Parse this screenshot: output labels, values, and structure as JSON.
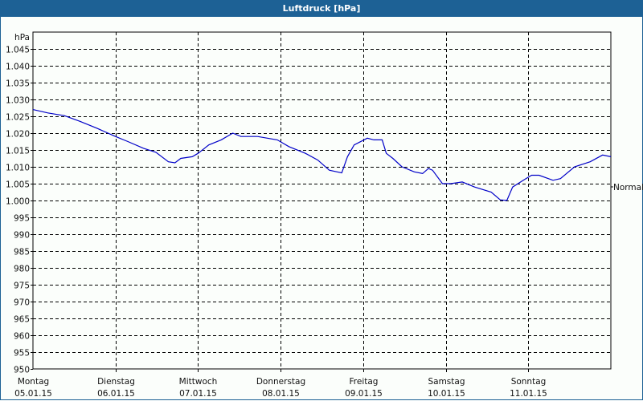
{
  "window": {
    "title": "Luftdruck [hPa]"
  },
  "colors": {
    "titlebar": "#1d6195",
    "line": "#0000c8",
    "grid": "#000000",
    "background": "#fbfefb"
  },
  "chart_data": {
    "type": "line",
    "title": "Luftdruck [hPa]",
    "ylabel": "hPa",
    "xlabel": "",
    "ylim": [
      950,
      1045
    ],
    "yticks": [
      "1.045",
      "1.040",
      "1.035",
      "1.030",
      "1.025",
      "1.020",
      "1.015",
      "1.010",
      "1.005",
      "1.000",
      "995",
      "990",
      "985",
      "980",
      "975",
      "970",
      "965",
      "960",
      "955",
      "950"
    ],
    "ytick_values": [
      1045,
      1040,
      1035,
      1030,
      1025,
      1020,
      1015,
      1010,
      1005,
      1000,
      995,
      990,
      985,
      980,
      975,
      970,
      965,
      960,
      955,
      950
    ],
    "categories": [
      {
        "day": "Montag",
        "date": "05.01.15"
      },
      {
        "day": "Dienstag",
        "date": "06.01.15"
      },
      {
        "day": "Mittwoch",
        "date": "07.01.15"
      },
      {
        "day": "Donnerstag",
        "date": "08.01.15"
      },
      {
        "day": "Freitag",
        "date": "09.01.15"
      },
      {
        "day": "Samstag",
        "date": "10.01.15"
      },
      {
        "day": "Sonntag",
        "date": "11.01.15"
      }
    ],
    "annotation": {
      "label": "Normal",
      "value": 1003
    },
    "grid": true,
    "series": [
      {
        "name": "Luftdruck",
        "x_days": [
          0,
          0.18,
          0.38,
          0.57,
          0.77,
          1.0,
          1.15,
          1.34,
          1.49,
          1.64,
          1.72,
          1.79,
          1.93,
          2.0,
          2.13,
          2.28,
          2.42,
          2.52,
          2.72,
          2.96,
          3.1,
          3.3,
          3.45,
          3.59,
          3.74,
          3.81,
          3.89,
          4.05,
          4.13,
          4.23,
          4.28,
          4.36,
          4.47,
          4.62,
          4.72,
          4.79,
          4.84,
          4.96,
          5.06,
          5.2,
          5.35,
          5.55,
          5.66,
          5.74,
          5.81,
          5.94,
          6.04,
          6.13,
          6.3,
          6.39,
          6.56,
          6.75,
          6.9,
          7.0
        ],
        "values": [
          1027.0,
          1026.0,
          1025.2,
          1023.5,
          1021.5,
          1019.0,
          1017.5,
          1015.5,
          1014.3,
          1011.5,
          1011.2,
          1012.5,
          1013.0,
          1014.0,
          1016.5,
          1018.0,
          1020.0,
          1019.0,
          1019.0,
          1018.0,
          1016.0,
          1014.0,
          1012.0,
          1009.0,
          1008.2,
          1013.0,
          1016.5,
          1018.5,
          1018.0,
          1018.0,
          1014.0,
          1012.5,
          1010.0,
          1008.5,
          1008.0,
          1009.5,
          1009.0,
          1005.0,
          1005.0,
          1005.5,
          1004.0,
          1002.5,
          1000.2,
          1000.0,
          1004.0,
          1006.0,
          1007.5,
          1007.5,
          1006.0,
          1006.5,
          1010.0,
          1011.5,
          1013.5,
          1013.0
        ]
      }
    ]
  }
}
